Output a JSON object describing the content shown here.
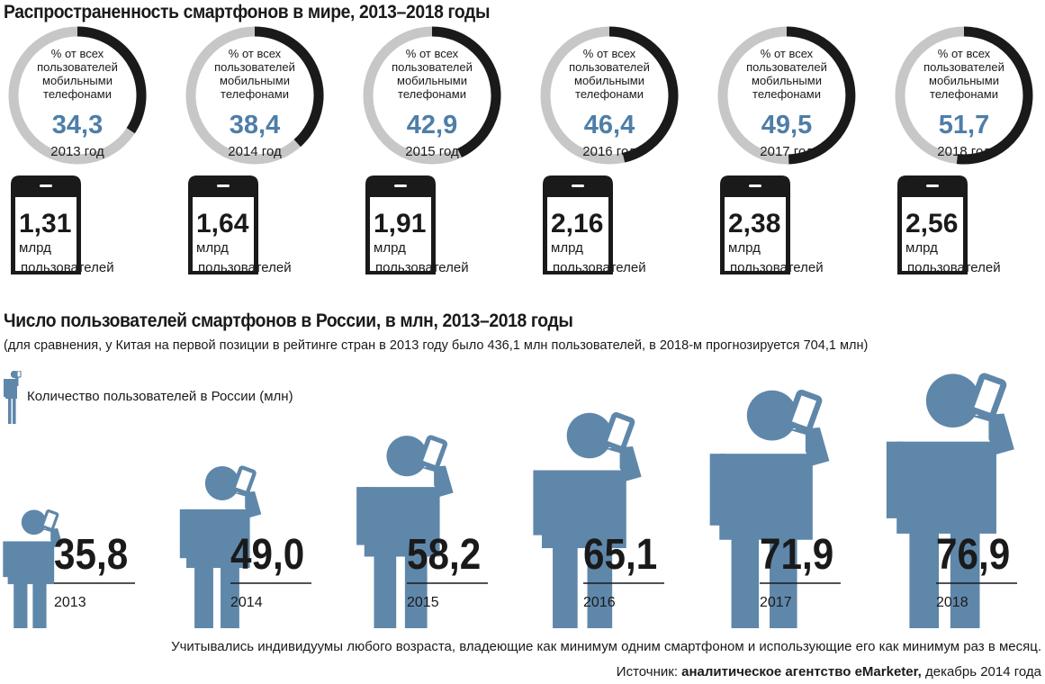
{
  "colors": {
    "accent": "#4e7ea8",
    "figure": "#5f87aa",
    "ring_track": "#c7c7c7",
    "ring_fill": "#1a1a1a",
    "text": "#1a1a1a"
  },
  "chart_data": [
    {
      "type": "pie",
      "title": "Распространенность смартфонов в мире, 2013–2018 годы",
      "ring_caption": [
        "% от всех",
        "пользователей",
        "мобильными",
        "телефонами"
      ],
      "users_unit": "млрд",
      "users_label": "пользователей",
      "items": [
        {
          "year_label": "2013 год",
          "percent": 34.3,
          "percent_label": "34,3",
          "users": 1.31,
          "users_label": "1,31"
        },
        {
          "year_label": "2014 год",
          "percent": 38.4,
          "percent_label": "38,4",
          "users": 1.64,
          "users_label": "1,64"
        },
        {
          "year_label": "2015 год",
          "percent": 42.9,
          "percent_label": "42,9",
          "users": 1.91,
          "users_label": "1,91"
        },
        {
          "year_label": "2016 год",
          "percent": 46.4,
          "percent_label": "46,4",
          "users": 2.16,
          "users_label": "2,16"
        },
        {
          "year_label": "2017 год",
          "percent": 49.5,
          "percent_label": "49,5",
          "users": 2.38,
          "users_label": "2,38"
        },
        {
          "year_label": "2018 год",
          "percent": 51.7,
          "percent_label": "51,7",
          "users": 2.56,
          "users_label": "2,56"
        }
      ]
    },
    {
      "type": "bar",
      "title": "Число пользователей смартфонов в России, в млн, 2013–2018 годы",
      "subtitle": "(для сравнения, у Китая на первой позиции в рейтинге стран в 2013 году было 436,1 млн пользователей, в 2018-м прогнозируется 704,1 млн)",
      "legend": "Количество пользователей в России (млн)",
      "categories": [
        "2013",
        "2014",
        "2015",
        "2016",
        "2017",
        "2018"
      ],
      "values": [
        35.8,
        49.0,
        58.2,
        65.1,
        71.9,
        76.9
      ],
      "value_labels": [
        "35,8",
        "49,0",
        "58,2",
        "65,1",
        "71,9",
        "76,9"
      ]
    }
  ],
  "footer": {
    "footnote": "Учитывались индивидуумы любого возраста, владеющие как минимум одним смартфоном и использующие его как минимум раз в месяц.",
    "source_prefix": "Источник:",
    "source_name": "аналитическое агентство eMarketer,",
    "source_suffix": "декабрь 2014 года"
  }
}
